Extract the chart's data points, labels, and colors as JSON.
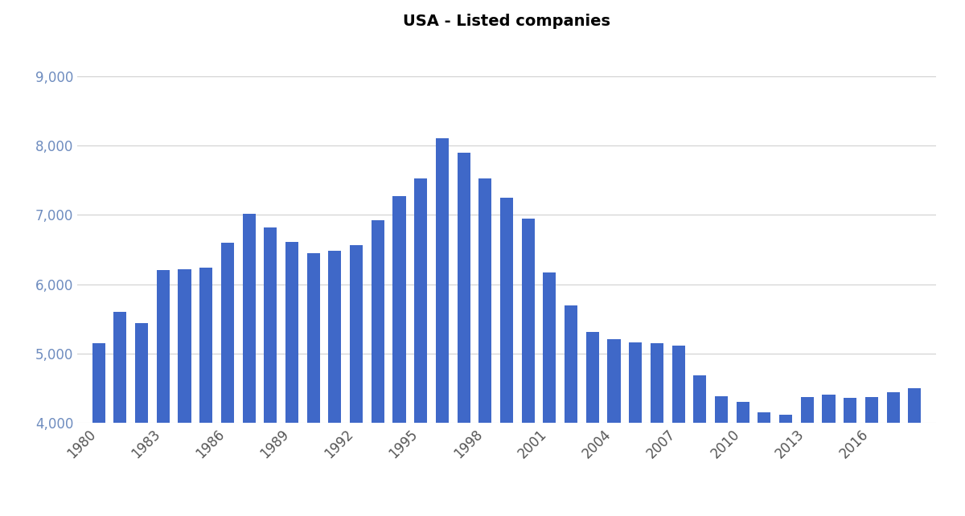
{
  "title": "USA - Listed companies",
  "years": [
    1980,
    1981,
    1982,
    1983,
    1984,
    1985,
    1986,
    1987,
    1988,
    1989,
    1990,
    1991,
    1992,
    1993,
    1994,
    1995,
    1996,
    1997,
    1998,
    1999,
    2000,
    2001,
    2002,
    2003,
    2004,
    2005,
    2006,
    2007,
    2008,
    2009,
    2010,
    2011,
    2012,
    2013,
    2014,
    2015,
    2016,
    2017,
    2018
  ],
  "values": [
    5150,
    5600,
    5440,
    6200,
    6220,
    6240,
    6600,
    7020,
    6820,
    6610,
    6450,
    6480,
    6560,
    6920,
    7270,
    7520,
    8100,
    7900,
    7520,
    7250,
    6950,
    6170,
    5700,
    5310,
    5210,
    5160,
    5150,
    5120,
    4690,
    4390,
    4310,
    4150,
    4120,
    4380,
    4410,
    4360,
    4380,
    4440,
    4500
  ],
  "bar_color": "#3F68C8",
  "background_color": "#ffffff",
  "ylim": [
    4000,
    9500
  ],
  "yticks": [
    4000,
    5000,
    6000,
    7000,
    8000,
    9000
  ],
  "ytick_color": "#6E8CBF",
  "xtick_labels": [
    "1980",
    "1983",
    "1986",
    "1989",
    "1992",
    "1995",
    "1998",
    "2001",
    "2004",
    "2007",
    "2010",
    "2013",
    "2016"
  ],
  "xtick_positions": [
    1980,
    1983,
    1986,
    1989,
    1992,
    1995,
    1998,
    2001,
    2004,
    2007,
    2010,
    2013,
    2016
  ],
  "grid_color": "#d0d0d0",
  "title_fontsize": 14,
  "tick_fontsize": 12,
  "bar_width": 0.6,
  "title_loc": "center"
}
